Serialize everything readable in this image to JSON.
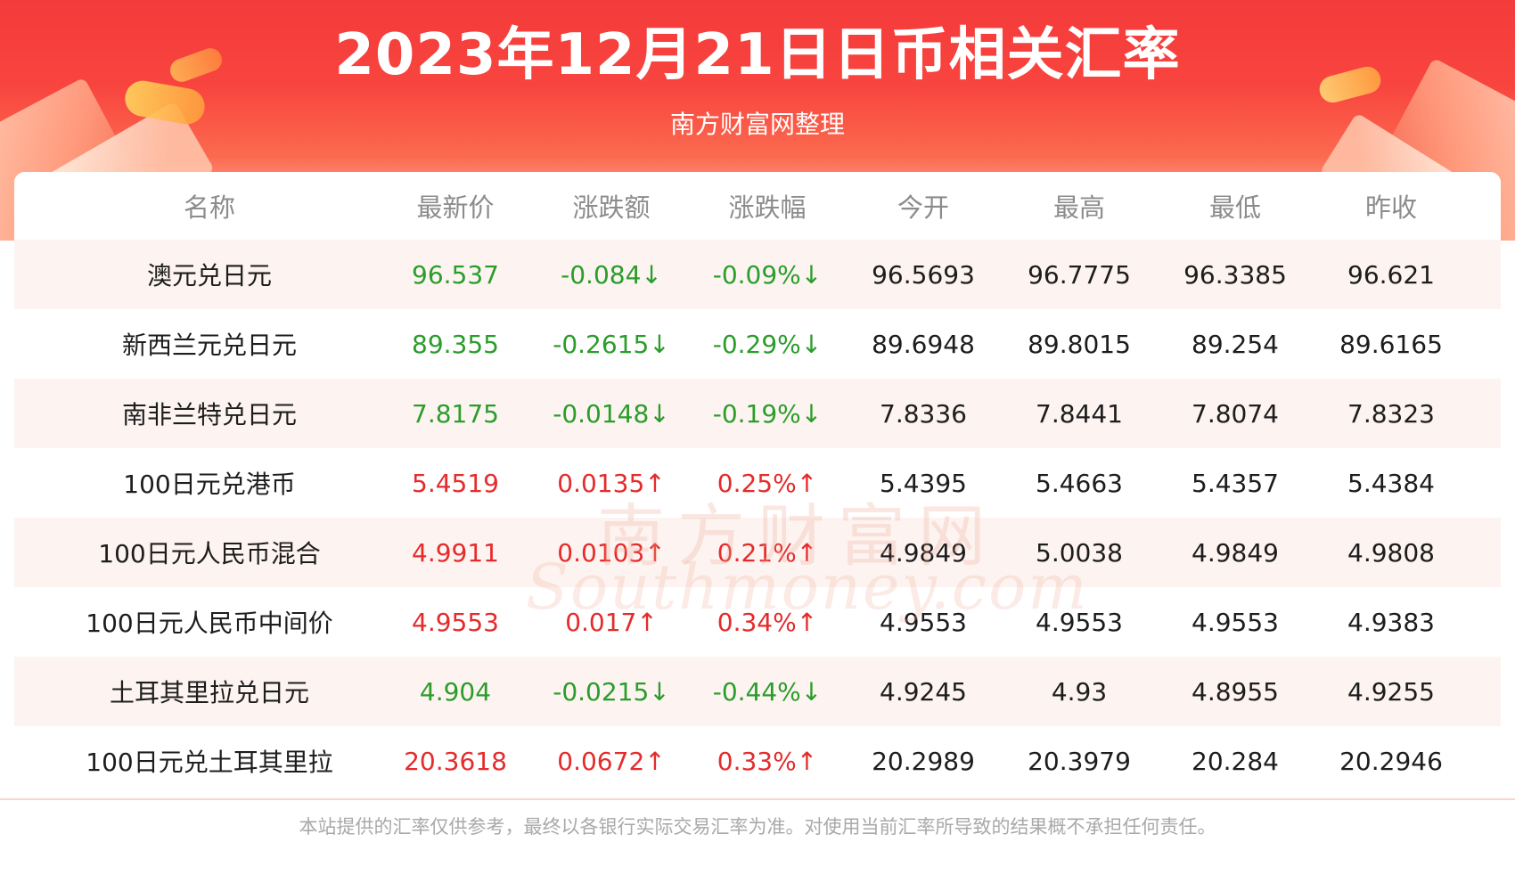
{
  "header": {
    "title": "2023年12月21日日币相关汇率",
    "subtitle": "南方财富网整理"
  },
  "table": {
    "columns": [
      "名称",
      "最新价",
      "涨跌额",
      "涨跌幅",
      "今开",
      "最高",
      "最低",
      "昨收"
    ],
    "rows": [
      {
        "name": "澳元兑日元",
        "latest": "96.537",
        "change": "-0.084↓",
        "change_pct": "-0.09%↓",
        "open": "96.5693",
        "high": "96.7775",
        "low": "96.3385",
        "prev_close": "96.621",
        "trend": "down"
      },
      {
        "name": "新西兰元兑日元",
        "latest": "89.355",
        "change": "-0.2615↓",
        "change_pct": "-0.29%↓",
        "open": "89.6948",
        "high": "89.8015",
        "low": "89.254",
        "prev_close": "89.6165",
        "trend": "down"
      },
      {
        "name": "南非兰特兑日元",
        "latest": "7.8175",
        "change": "-0.0148↓",
        "change_pct": "-0.19%↓",
        "open": "7.8336",
        "high": "7.8441",
        "low": "7.8074",
        "prev_close": "7.8323",
        "trend": "down"
      },
      {
        "name": "100日元兑港币",
        "latest": "5.4519",
        "change": "0.0135↑",
        "change_pct": "0.25%↑",
        "open": "5.4395",
        "high": "5.4663",
        "low": "5.4357",
        "prev_close": "5.4384",
        "trend": "up"
      },
      {
        "name": "100日元人民币混合",
        "latest": "4.9911",
        "change": "0.0103↑",
        "change_pct": "0.21%↑",
        "open": "4.9849",
        "high": "5.0038",
        "low": "4.9849",
        "prev_close": "4.9808",
        "trend": "up"
      },
      {
        "name": "100日元人民币中间价",
        "latest": "4.9553",
        "change": "0.017↑",
        "change_pct": "0.34%↑",
        "open": "4.9553",
        "high": "4.9553",
        "low": "4.9553",
        "prev_close": "4.9383",
        "trend": "up"
      },
      {
        "name": "土耳其里拉兑日元",
        "latest": "4.904",
        "change": "-0.0215↓",
        "change_pct": "-0.44%↓",
        "open": "4.9245",
        "high": "4.93",
        "low": "4.8955",
        "prev_close": "4.9255",
        "trend": "down"
      },
      {
        "name": "100日元兑土耳其里拉",
        "latest": "20.3618",
        "change": "0.0672↑",
        "change_pct": "0.33%↑",
        "open": "20.2989",
        "high": "20.3979",
        "low": "20.284",
        "prev_close": "20.2946",
        "trend": "up"
      }
    ]
  },
  "watermark": {
    "cn": "南方财富网",
    "en": "Southmoney.com"
  },
  "footer": {
    "disclaimer": "本站提供的汇率仅供参考，最终以各银行实际交易汇率为准。对使用当前汇率所导致的结果概不承担任何责任。"
  },
  "colors": {
    "up": "#e52b2b",
    "down": "#2a9d2a",
    "banner": "#f43b3b"
  }
}
